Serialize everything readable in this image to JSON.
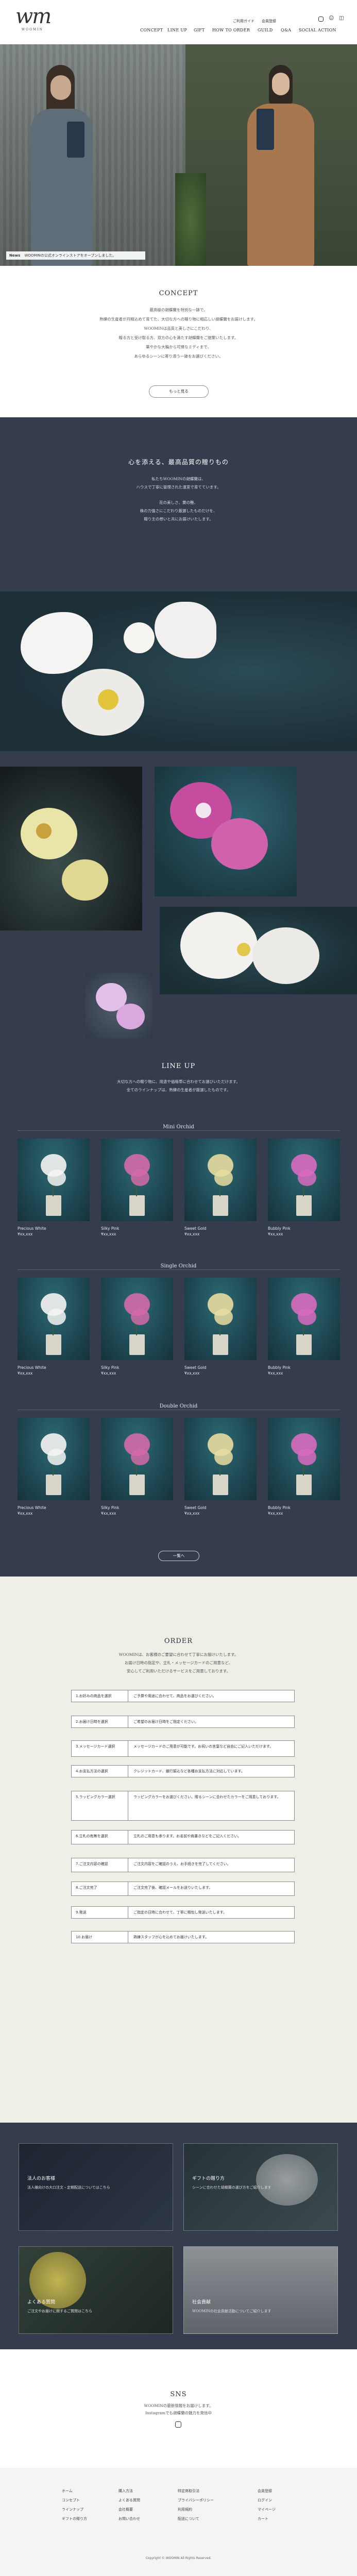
{
  "header": {
    "logo_text": "wm",
    "logo_sub": "WOOMIN",
    "util_links": [
      "ご利用ガイド",
      "会員登録"
    ],
    "nav": [
      "CONCEPT",
      "LINE UP",
      "GIFT",
      "HOW TO ORDER",
      "GUILD",
      "Q&A",
      "SOCIAL ACTION"
    ]
  },
  "notice": {
    "label": "News",
    "text": "WOOMINの公式オンラインストアをオープンしました。"
  },
  "concept": {
    "title": "CONCEPT",
    "lines": [
      "最高級の胡蝶蘭を特別な一鉢で。",
      "熟練の生産者が丹精込めて育てた、大切な方への贈り物に相応しい胡蝶蘭をお届けします。",
      "WOOMINは品質と美しさにこだわり、",
      "贈る方と受け取る方、双方の心を満たす胡蝶蘭をご提案いたします。",
      "華やかな大輪から可憐なミディまで、",
      "あらゆるシーンに寄り添う一鉢をお選びください。"
    ],
    "button": "もっと見る"
  },
  "dark_intro": {
    "heading": "心を添える、最高品質の贈りもの",
    "lines": [
      "私たちWOOMINの胡蝶蘭は、",
      "ハウスで丁寧に管理された温室で育てています。",
      "花の美しさ、葉の艶、",
      "株の力強さにこだわり厳選したものだけを、",
      "贈り主の想いと共にお届けいたします。"
    ]
  },
  "lineup": {
    "title": "LINE UP",
    "lines": [
      "大切な方への贈り物に、用途や価格帯に合わせてお選びいただけます。",
      "全てのラインナップは、熟練の生産者が厳選したものです。"
    ],
    "groups": [
      {
        "title": "Mini Orchid",
        "items": [
          {
            "name": "Precious White",
            "price": "¥xx,xxx"
          },
          {
            "name": "Silky Pink",
            "price": "¥xx,xxx"
          },
          {
            "name": "Sweet Gold",
            "price": "¥xx,xxx"
          },
          {
            "name": "Bubbly Pink",
            "price": "¥xx,xxx"
          }
        ]
      },
      {
        "title": "Single Orchid",
        "items": [
          {
            "name": "Precious White",
            "price": "¥xx,xxx"
          },
          {
            "name": "Silky Pink",
            "price": "¥xx,xxx"
          },
          {
            "name": "Sweet Gold",
            "price": "¥xx,xxx"
          },
          {
            "name": "Bubbly Pink",
            "price": "¥xx,xxx"
          }
        ]
      },
      {
        "title": "Double Orchid",
        "items": [
          {
            "name": "Precious White",
            "price": "¥xx,xxx"
          },
          {
            "name": "Silky Pink",
            "price": "¥xx,xxx"
          },
          {
            "name": "Sweet Gold",
            "price": "¥xx,xxx"
          },
          {
            "name": "Bubbly Pink",
            "price": "¥xx,xxx"
          }
        ]
      }
    ],
    "button": "一覧へ"
  },
  "order": {
    "title": "ORDER",
    "intro": [
      "WOOMINは、お客様のご要望に合わせて丁寧にお届けいたします。",
      "お届け日時の指定や、立札・メッセージカードのご用意など、",
      "安心してご利用いただけるサービスをご用意しております。"
    ],
    "rows": [
      {
        "label": "1.お好みの商品を選択",
        "text": "ご予算や用途に合わせて、商品をお選びください。"
      },
      {
        "label": "2.お届け日時を選択",
        "text": "ご希望のお届け日時をご指定ください。"
      },
      {
        "label": "3.メッセージカード選択",
        "text": "メッセージカードのご用意が可能です。お祝いの言葉など自由にご記入いただけます。"
      },
      {
        "label": "4.お支払方法の選択",
        "text": "クレジットカード、銀行振込など各種お支払方法に対応しています。"
      },
      {
        "label": "5.ラッピングカラー選択",
        "text": "ラッピングカラーをお選びください。贈るシーンに合わせたカラーをご用意しております。"
      },
      {
        "label": "6.立札の有無を選択",
        "text": "立札のご用意も承ります。お名前や肩書きなどをご記入ください。"
      },
      {
        "label": "7.ご注文内容の確認",
        "text": "ご注文内容をご確認のうえ、お手続きを完了してください。"
      },
      {
        "label": "8.ご注文完了",
        "text": "ご注文完了後、確認メールをお送りいたします。"
      },
      {
        "label": "9.発送",
        "text": "ご指定の日時に合わせて、丁寧に梱包し発送いたします。"
      },
      {
        "label": "10.お届け",
        "text": "熟練スタッフが心を込めてお届けいたします。"
      }
    ]
  },
  "banners": [
    {
      "title": "法人のお客様",
      "text": "法人様向けの大口注文・定期配送についてはこちら"
    },
    {
      "title": "ギフトの贈り方",
      "text": "シーンに合わせた胡蝶蘭の選び方をご紹介します"
    },
    {
      "title": "よくある質問",
      "text": "ご注文やお届けに関するご質問はこちら"
    },
    {
      "title": "社会貢献",
      "text": "WOOMINの社会貢献活動についてご紹介します"
    }
  ],
  "sns": {
    "title": "SNS",
    "lines": [
      "WOOMINの最新情報をお届けします。",
      "Instagramでも胡蝶蘭の魅力を発信中"
    ]
  },
  "footer": {
    "columns": [
      [
        "ホーム",
        "コンセプト",
        "ラインナップ",
        "ギフトの贈り方"
      ],
      [
        "購入方法",
        "よくある質問",
        "会社概要",
        "お問い合わせ"
      ],
      [
        "特定商取引法",
        "プライバシーポリシー",
        "利用規約",
        "配送について"
      ],
      [
        "会員登録",
        "ログイン",
        "マイページ",
        "カート"
      ]
    ],
    "copyright": "Copyright © WOOMIN All Rights Reserved."
  },
  "colors": {
    "dark": "#343c4d",
    "order_bg": "#efeee7",
    "accent": "#2a2f3a"
  }
}
